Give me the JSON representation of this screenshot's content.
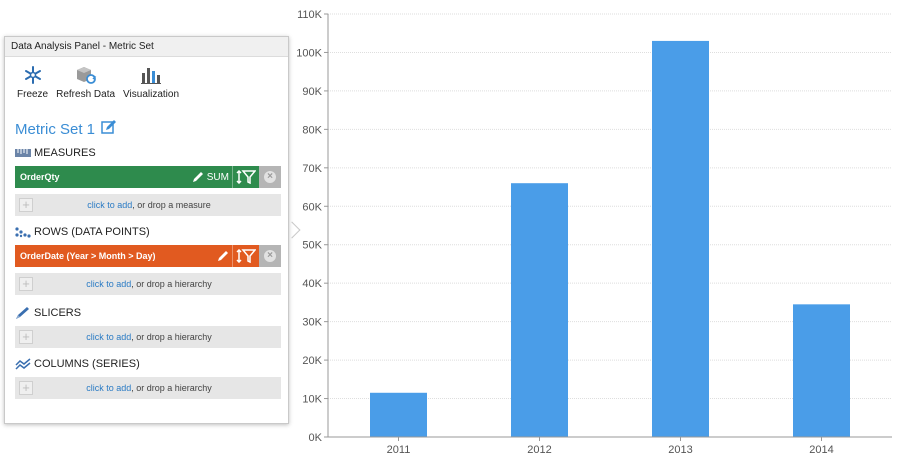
{
  "panel": {
    "title": "Data Analysis Panel - Metric Set",
    "toolbar": [
      {
        "label": "Freeze",
        "icon": "freeze-icon"
      },
      {
        "label": "Refresh Data",
        "icon": "refresh-data-icon"
      },
      {
        "label": "Visualization",
        "icon": "visualization-icon"
      }
    ],
    "metric_set_title": "Metric Set 1",
    "sections": {
      "measures": {
        "label": "MEASURES",
        "chip": {
          "label": "OrderQty",
          "aggregation": "SUM",
          "color": "#2e8b4d"
        },
        "drop_link": "click to add",
        "drop_text": ", or drop a measure"
      },
      "rows": {
        "label": "ROWS (DATA POINTS)",
        "chip": {
          "label": "OrderDate (Year > Month > Day)",
          "color": "#e15a20"
        },
        "drop_link": "click to add",
        "drop_text": ", or drop a hierarchy"
      },
      "slicers": {
        "label": "SLICERS",
        "drop_link": "click to add",
        "drop_text": ", or drop a hierarchy"
      },
      "columns": {
        "label": "COLUMNS (SERIES)",
        "drop_link": "click to add",
        "drop_text": ", or drop a hierarchy"
      }
    }
  },
  "chart_data": {
    "type": "bar",
    "categories": [
      "2011",
      "2012",
      "2013",
      "2014"
    ],
    "values": [
      11500,
      66000,
      103000,
      34500
    ],
    "ylim": [
      0,
      110000
    ],
    "yticks": [
      "0K",
      "10K",
      "20K",
      "30K",
      "40K",
      "50K",
      "60K",
      "70K",
      "80K",
      "90K",
      "100K",
      "110K"
    ],
    "bar_color": "#4a9de8",
    "grid": true,
    "title": "",
    "xlabel": "",
    "ylabel": ""
  }
}
